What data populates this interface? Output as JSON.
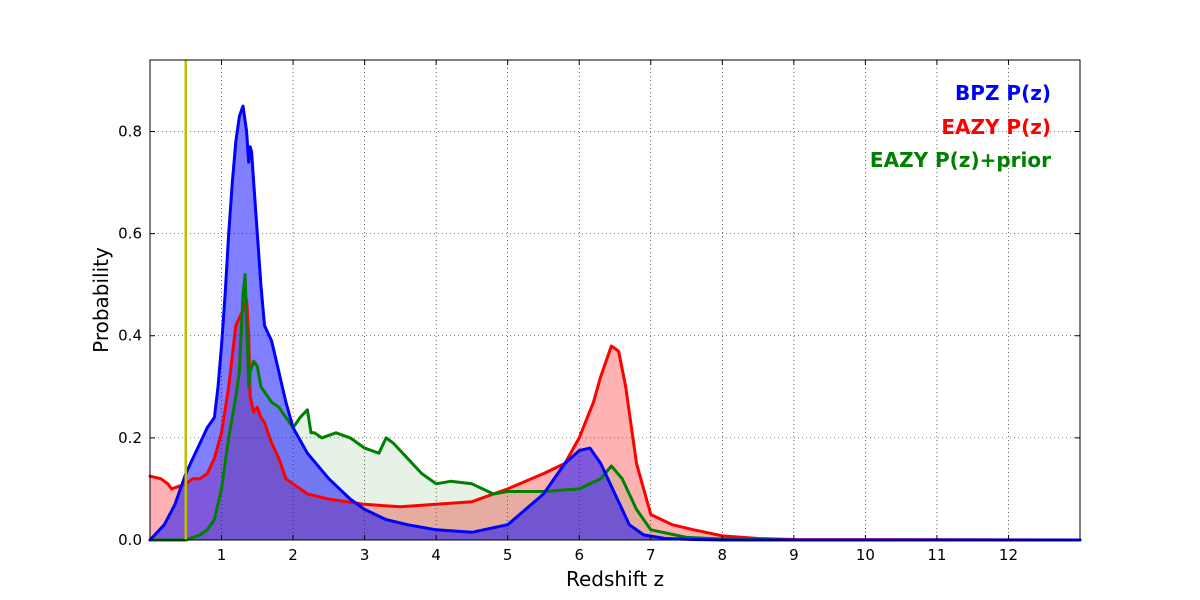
{
  "chart_data": {
    "type": "area",
    "xlabel": "Redshift z",
    "ylabel": "Probability",
    "xlim": [
      0,
      13
    ],
    "ylim": [
      0,
      0.94
    ],
    "x_ticks": [
      1,
      2,
      3,
      4,
      5,
      6,
      7,
      8,
      9,
      10,
      11,
      12
    ],
    "y_ticks": [
      0.0,
      0.2,
      0.4,
      0.6,
      0.8
    ],
    "grid": true,
    "legend_position": "top-right",
    "vline": {
      "x": 0.5,
      "color": "#bfbf00"
    },
    "series": [
      {
        "name": "BPZ P(z)",
        "color": "#0000ff",
        "fill_alpha": 0.5,
        "x": [
          0,
          0.2,
          0.35,
          0.5,
          0.6,
          0.7,
          0.8,
          0.85,
          0.9,
          0.95,
          1.0,
          1.05,
          1.1,
          1.15,
          1.2,
          1.25,
          1.3,
          1.35,
          1.38,
          1.4,
          1.42,
          1.45,
          1.5,
          1.55,
          1.6,
          1.7,
          1.8,
          1.85,
          1.9,
          2.0,
          2.2,
          2.5,
          2.8,
          3.0,
          3.3,
          3.6,
          4.0,
          4.5,
          5.0,
          5.5,
          5.8,
          6.0,
          6.15,
          6.3,
          6.5,
          6.7,
          6.9,
          7.2,
          7.6,
          8.0,
          10.0,
          13.0
        ],
        "y": [
          0.0,
          0.03,
          0.07,
          0.13,
          0.16,
          0.19,
          0.22,
          0.23,
          0.24,
          0.3,
          0.38,
          0.48,
          0.6,
          0.7,
          0.78,
          0.83,
          0.85,
          0.8,
          0.74,
          0.77,
          0.76,
          0.7,
          0.6,
          0.5,
          0.42,
          0.39,
          0.33,
          0.3,
          0.27,
          0.22,
          0.17,
          0.12,
          0.08,
          0.06,
          0.04,
          0.03,
          0.02,
          0.015,
          0.03,
          0.09,
          0.15,
          0.175,
          0.18,
          0.15,
          0.09,
          0.03,
          0.01,
          0.003,
          0.001,
          0.0,
          0.0,
          0.0
        ]
      },
      {
        "name": "EAZY P(z)",
        "color": "#ff0000",
        "fill_alpha": 0.3,
        "x": [
          0,
          0.15,
          0.25,
          0.3,
          0.4,
          0.5,
          0.6,
          0.7,
          0.8,
          0.9,
          1.0,
          1.1,
          1.2,
          1.3,
          1.35,
          1.38,
          1.4,
          1.45,
          1.5,
          1.55,
          1.6,
          1.7,
          1.8,
          1.9,
          2.0,
          2.2,
          2.5,
          3.0,
          3.5,
          4.0,
          4.5,
          5.0,
          5.5,
          5.8,
          6.0,
          6.2,
          6.3,
          6.4,
          6.45,
          6.55,
          6.65,
          6.8,
          7.0,
          7.3,
          7.6,
          8.0,
          8.5,
          9.0,
          13.0
        ],
        "y": [
          0.125,
          0.12,
          0.11,
          0.1,
          0.105,
          0.11,
          0.12,
          0.12,
          0.13,
          0.16,
          0.21,
          0.3,
          0.42,
          0.45,
          0.47,
          0.4,
          0.28,
          0.25,
          0.26,
          0.24,
          0.23,
          0.19,
          0.16,
          0.12,
          0.11,
          0.09,
          0.08,
          0.07,
          0.065,
          0.07,
          0.075,
          0.1,
          0.13,
          0.15,
          0.2,
          0.27,
          0.32,
          0.36,
          0.38,
          0.37,
          0.3,
          0.15,
          0.05,
          0.03,
          0.02,
          0.008,
          0.003,
          0.001,
          0.0
        ]
      },
      {
        "name": "EAZY P(z)+prior",
        "color": "#008000",
        "fill_alpha": 0.1,
        "x": [
          0,
          0.5,
          0.7,
          0.8,
          0.9,
          1.0,
          1.1,
          1.2,
          1.25,
          1.3,
          1.33,
          1.35,
          1.38,
          1.4,
          1.45,
          1.5,
          1.55,
          1.6,
          1.7,
          1.8,
          1.9,
          2.0,
          2.1,
          2.2,
          2.25,
          2.3,
          2.4,
          2.6,
          2.8,
          3.0,
          3.2,
          3.3,
          3.4,
          3.6,
          3.8,
          4.0,
          4.2,
          4.5,
          4.8,
          5.0,
          5.5,
          6.0,
          6.3,
          6.45,
          6.6,
          6.8,
          7.0,
          7.5,
          8.0,
          9.0,
          13.0
        ],
        "y": [
          0.0,
          0.0,
          0.01,
          0.02,
          0.04,
          0.1,
          0.2,
          0.28,
          0.33,
          0.48,
          0.52,
          0.43,
          0.3,
          0.33,
          0.35,
          0.34,
          0.3,
          0.29,
          0.27,
          0.26,
          0.24,
          0.22,
          0.24,
          0.255,
          0.21,
          0.21,
          0.2,
          0.21,
          0.2,
          0.18,
          0.17,
          0.2,
          0.19,
          0.16,
          0.13,
          0.11,
          0.115,
          0.11,
          0.09,
          0.095,
          0.095,
          0.1,
          0.12,
          0.145,
          0.12,
          0.06,
          0.02,
          0.005,
          0.002,
          0.0,
          0.0
        ]
      }
    ]
  }
}
